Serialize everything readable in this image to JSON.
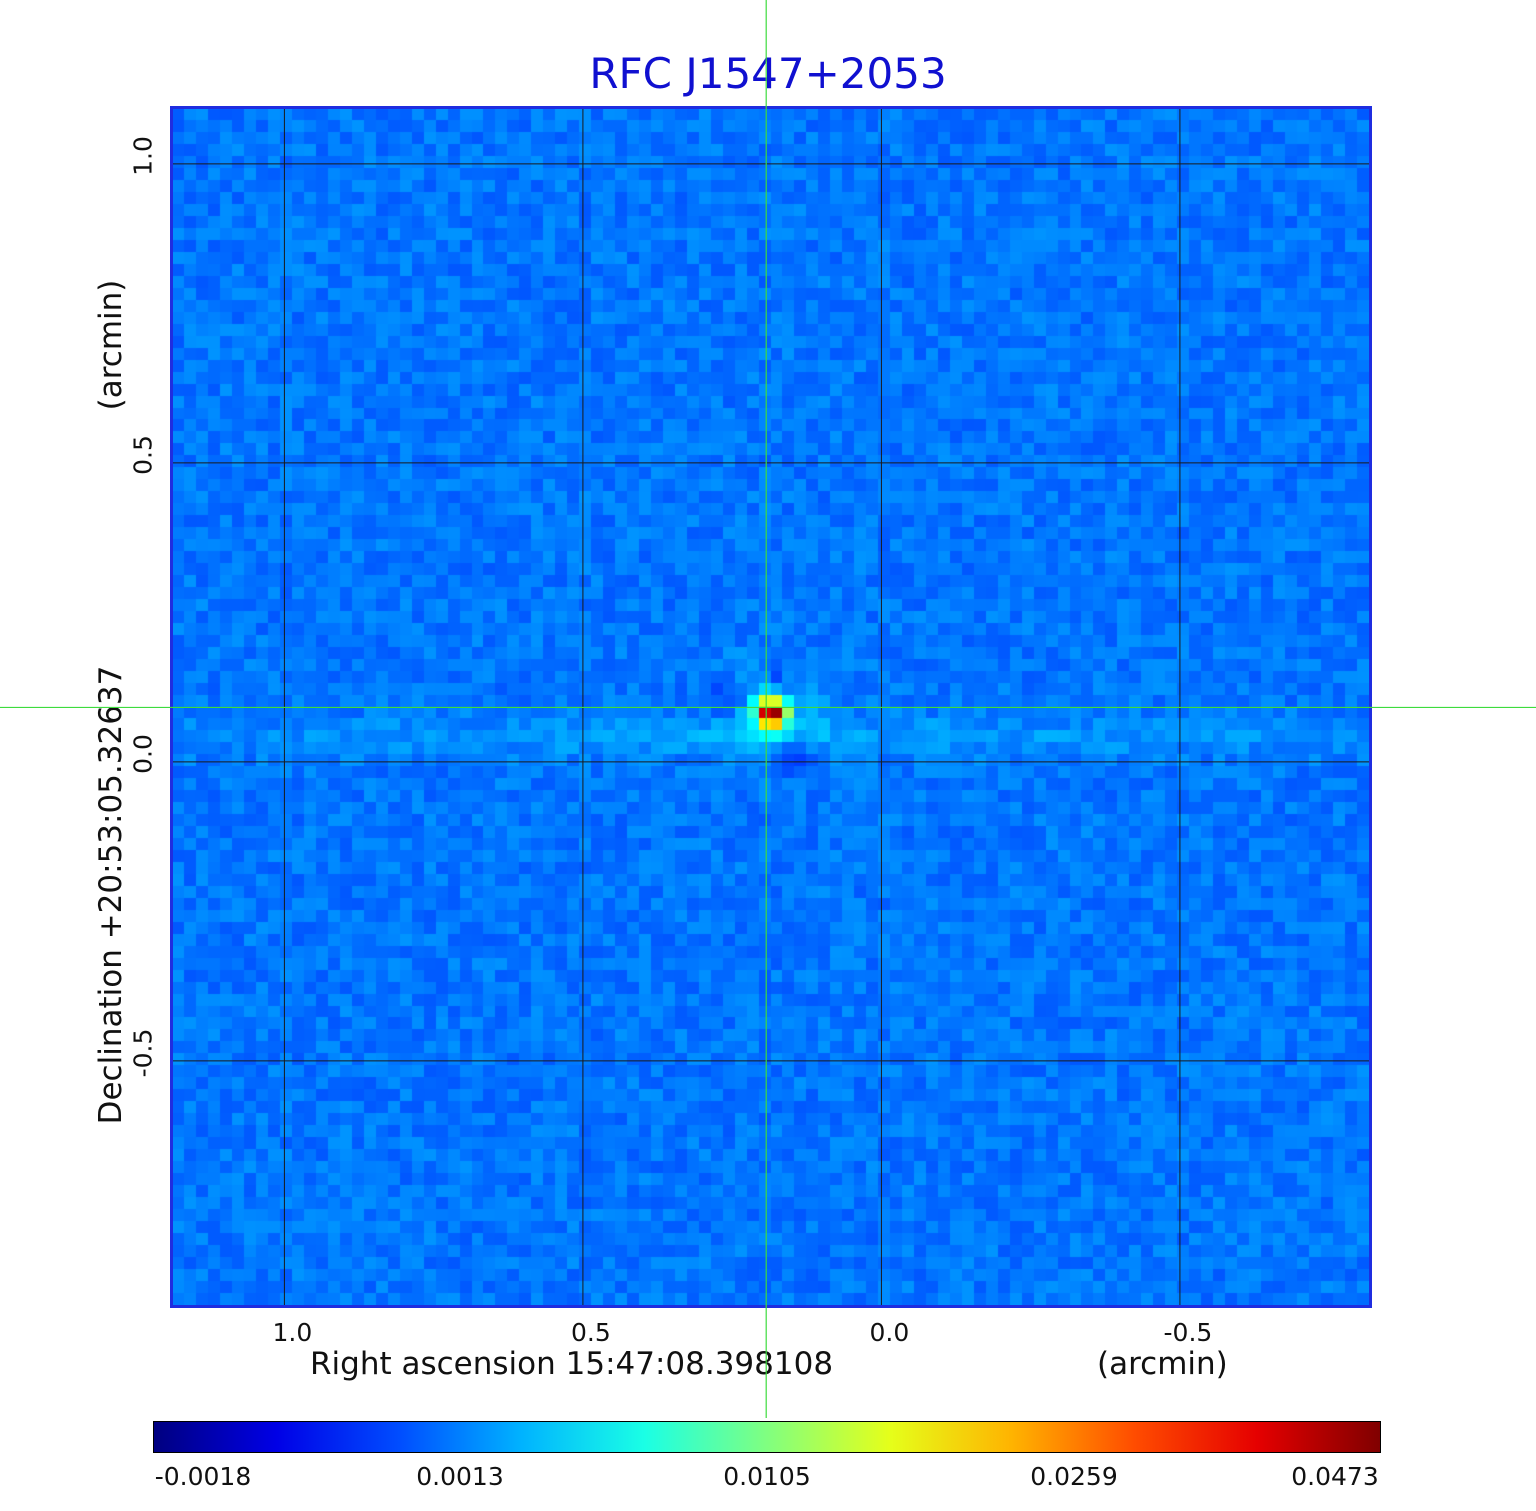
{
  "chart_data": {
    "type": "heatmap",
    "title": "RFC J1547+2053",
    "xlabel": "Right ascension  15:47:08.398108",
    "xunit": "(arcmin)",
    "ylabel": "Declination  +20:53:05.32637",
    "yunit": "(arcmin)",
    "x_range": [
      1.1866,
      -0.8167
    ],
    "y_range": [
      -0.9083,
      1.0917
    ],
    "x_ticks": [
      {
        "value": 1.0,
        "label": "1.0"
      },
      {
        "value": 0.5,
        "label": "0.5"
      },
      {
        "value": 0.0,
        "label": "0.0"
      },
      {
        "value": -0.5,
        "label": "-0.5"
      }
    ],
    "y_ticks": [
      {
        "value": 1.0,
        "label": "1.0"
      },
      {
        "value": 0.5,
        "label": "0.5"
      },
      {
        "value": 0.0,
        "label": "0.0"
      },
      {
        "value": -0.5,
        "label": "-0.5"
      }
    ],
    "grid": true,
    "source_peak": {
      "x": 0.193,
      "y": 0.091,
      "value": 0.0473
    },
    "crosshair": {
      "x": 0.193,
      "y": 0.091
    },
    "colorbar": {
      "min": -0.0018,
      "max": 0.0473,
      "labels": [
        "-0.0018",
        "0.0013",
        "0.0105",
        "0.0259",
        "0.0473"
      ],
      "colormap": "jet"
    }
  },
  "colors": {
    "title": "#1010d0",
    "frame": "#1f2de0",
    "grid": "#1a1a1a",
    "crosshair": "#3ddc3d"
  }
}
